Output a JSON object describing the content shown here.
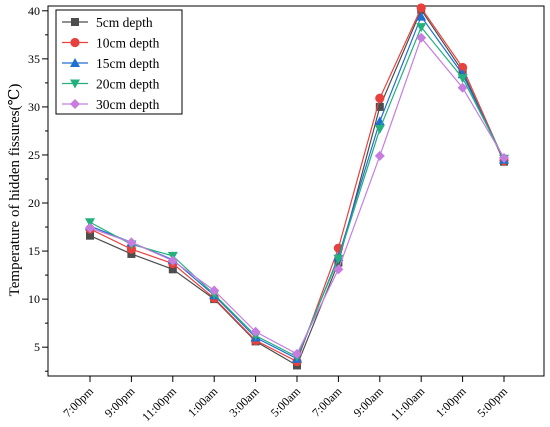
{
  "chart_data": {
    "type": "line",
    "title": "",
    "xlabel": "",
    "ylabel": "Temperature of hidden fissures(℃)",
    "categories": [
      "7:00pm",
      "9:00pm",
      "11:00pm",
      "1:00am",
      "3:00am",
      "5:00am",
      "7:00am",
      "9:00am",
      "11:00am",
      "1:00pm",
      "5:00pm"
    ],
    "ylim": [
      2,
      40.5
    ],
    "yticks": [
      5,
      10,
      15,
      20,
      25,
      30,
      35,
      40
    ],
    "grid": false,
    "legend_position": "top-left",
    "series": [
      {
        "name": "5cm depth",
        "color": "#4d4d4d",
        "marker": "square",
        "values": [
          16.6,
          14.7,
          13.1,
          10.0,
          5.6,
          3.1,
          13.8,
          30.0,
          40.1,
          33.7,
          24.3
        ]
      },
      {
        "name": "10cm depth",
        "color": "#e8413d",
        "marker": "circle",
        "values": [
          17.3,
          15.2,
          13.7,
          10.1,
          5.7,
          3.5,
          15.3,
          30.9,
          40.3,
          34.1,
          24.4
        ]
      },
      {
        "name": "15cm depth",
        "color": "#1f6fd1",
        "marker": "triangle-up",
        "values": [
          17.6,
          15.9,
          14.1,
          10.4,
          6.0,
          3.8,
          14.4,
          28.5,
          39.4,
          33.4,
          24.5
        ]
      },
      {
        "name": "20cm depth",
        "color": "#22b07d",
        "marker": "triangle-down",
        "values": [
          18.0,
          15.7,
          14.5,
          10.5,
          6.2,
          4.0,
          14.2,
          27.7,
          38.3,
          33.0,
          24.6
        ]
      },
      {
        "name": "30cm depth",
        "color": "#c77de0",
        "marker": "diamond",
        "values": [
          17.4,
          15.9,
          14.0,
          10.9,
          6.6,
          4.3,
          13.1,
          24.9,
          37.2,
          32.0,
          24.7
        ]
      }
    ]
  }
}
